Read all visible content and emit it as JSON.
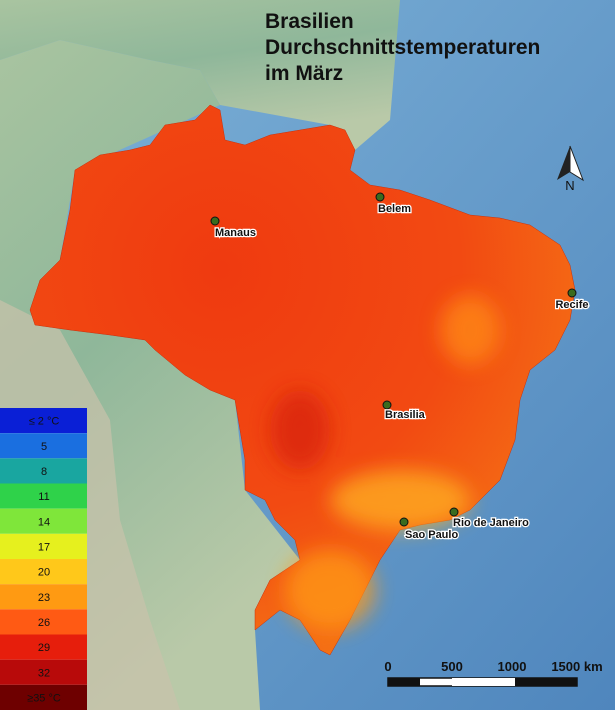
{
  "title": [
    "Brasilien",
    "Durchschnittstemperaturen",
    "im März"
  ],
  "north": "N",
  "cities": [
    "Manaus",
    "Belem",
    "Recife",
    "Brasilia",
    "Rio de Janeiro",
    "Sao Paulo"
  ],
  "legend": [
    {
      "label": "≤ 2 °C",
      "color": "#0a1fd6"
    },
    {
      "label": "5",
      "color": "#1a6fe0"
    },
    {
      "label": "8",
      "color": "#19a6a0"
    },
    {
      "label": "11",
      "color": "#2fd24a"
    },
    {
      "label": "14",
      "color": "#7fe63a"
    },
    {
      "label": "17",
      "color": "#e6f01e"
    },
    {
      "label": "20",
      "color": "#ffc81a"
    },
    {
      "label": "23",
      "color": "#ff9a12"
    },
    {
      "label": "26",
      "color": "#ff5a14"
    },
    {
      "label": "29",
      "color": "#e61e0c"
    },
    {
      "label": "32",
      "color": "#b80a0a"
    },
    {
      "label": "≥35 °C",
      "color": "#6e0000"
    }
  ],
  "scale": [
    "0",
    "500",
    "1000",
    "1500 km"
  ]
}
